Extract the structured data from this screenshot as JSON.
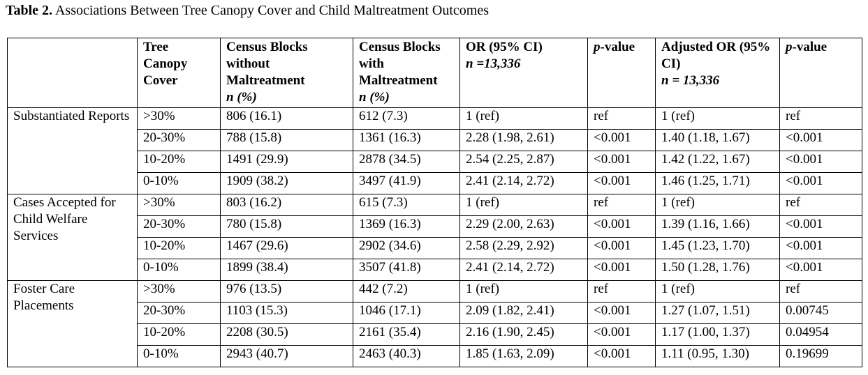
{
  "caption": {
    "label": "Table 2.",
    "text": "Associations Between Tree Canopy Cover and Child Maltreatment Outcomes"
  },
  "header": {
    "col1": "",
    "col2": "Tree Canopy Cover",
    "col3": "Census Blocks without Maltreatment",
    "col3_sub": "n (%)",
    "col4": "Census Blocks with Maltreatment",
    "col4_sub": "n (%)",
    "col5": "OR (95% CI)",
    "col5_sub": "n =13,336",
    "col6_p": "p",
    "col6_rest": "-value",
    "col7": "Adjusted OR (95% CI)",
    "col7_sub": "n = 13,336",
    "col8_p": "p",
    "col8_rest": "-value"
  },
  "groups": [
    {
      "label": "Substantiated Reports",
      "rows": [
        {
          "cover": ">30%",
          "without": "806 (16.1)",
          "with": "612 (7.3)",
          "or": "1 (ref)",
          "p": "ref",
          "aor": "1 (ref)",
          "ap": "ref"
        },
        {
          "cover": "20-30%",
          "without": "788 (15.8)",
          "with": "1361 (16.3)",
          "or": "2.28 (1.98, 2.61)",
          "p": "<0.001",
          "aor": "1.40 (1.18, 1.67)",
          "ap": "<0.001"
        },
        {
          "cover": "10-20%",
          "without": "1491 (29.9)",
          "with": "2878 (34.5)",
          "or": "2.54 (2.25, 2.87)",
          "p": "<0.001",
          "aor": "1.42 (1.22, 1.67)",
          "ap": "<0.001"
        },
        {
          "cover": "0-10%",
          "without": "1909 (38.2)",
          "with": "3497 (41.9)",
          "or": "2.41 (2.14, 2.72)",
          "p": "<0.001",
          "aor": "1.46 (1.25, 1.71)",
          "ap": "<0.001"
        }
      ]
    },
    {
      "label": "Cases Accepted for Child Welfare Services",
      "rows": [
        {
          "cover": ">30%",
          "without": "803 (16.2)",
          "with": "615 (7.3)",
          "or": "1 (ref)",
          "p": "ref",
          "aor": "1 (ref)",
          "ap": "ref"
        },
        {
          "cover": "20-30%",
          "without": "780 (15.8)",
          "with": "1369 (16.3)",
          "or": "2.29 (2.00, 2.63)",
          "p": "<0.001",
          "aor": "1.39 (1.16, 1.66)",
          "ap": "<0.001"
        },
        {
          "cover": "10-20%",
          "without": "1467 (29.6)",
          "with": "2902 (34.6)",
          "or": "2.58 (2.29, 2.92)",
          "p": "<0.001",
          "aor": "1.45 (1.23, 1.70)",
          "ap": "<0.001"
        },
        {
          "cover": "0-10%",
          "without": "1899 (38.4)",
          "with": "3507 (41.8)",
          "or": "2.41 (2.14, 2.72)",
          "p": "<0.001",
          "aor": "1.50 (1.28, 1.76)",
          "ap": "<0.001"
        }
      ]
    },
    {
      "label": "Foster Care Placements",
      "rows": [
        {
          "cover": ">30%",
          "without": "976 (13.5)",
          "with": "442 (7.2)",
          "or": "1 (ref)",
          "p": "ref",
          "aor": "1 (ref)",
          "ap": "ref"
        },
        {
          "cover": "20-30%",
          "without": "1103 (15.3)",
          "with": "1046 (17.1)",
          "or": "2.09 (1.82, 2.41)",
          "p": "<0.001",
          "aor": "1.27 (1.07, 1.51)",
          "ap": "0.00745"
        },
        {
          "cover": "10-20%",
          "without": "2208 (30.5)",
          "with": "2161 (35.4)",
          "or": "2.16 (1.90, 2.45)",
          "p": "<0.001",
          "aor": "1.17 (1.00, 1.37)",
          "ap": "0.04954"
        },
        {
          "cover": "0-10%",
          "without": "2943 (40.7)",
          "with": "2463 (40.3)",
          "or": "1.85 (1.63, 2.09)",
          "p": "<0.001",
          "aor": "1.11 (0.95, 1.30)",
          "ap": "0.19699"
        }
      ]
    }
  ]
}
